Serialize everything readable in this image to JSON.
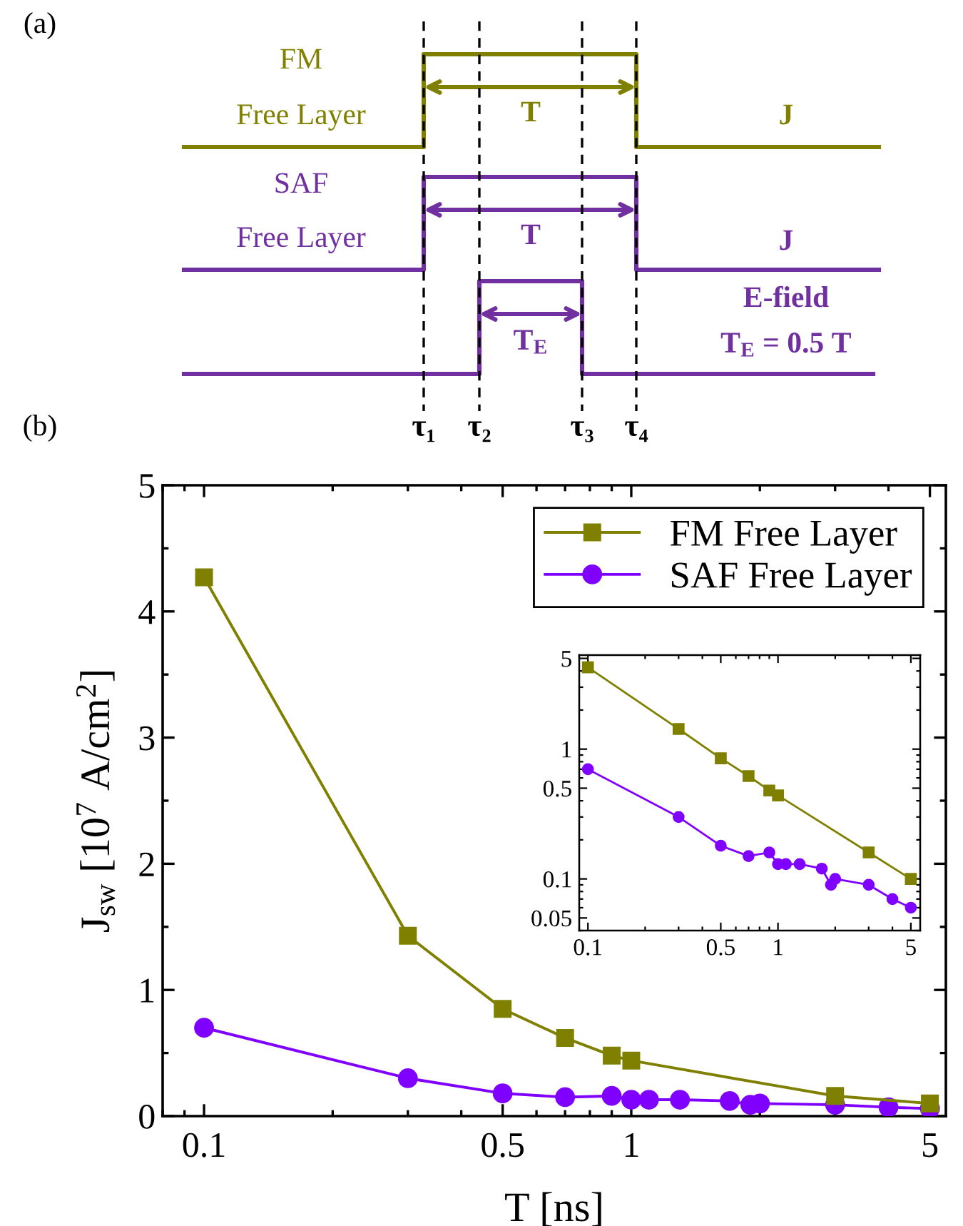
{
  "chart_data": [
    {
      "type": "other",
      "annotations": [
        "(a)",
        "FM",
        "Free Layer",
        "SAF",
        "Free Layer",
        "T",
        "T",
        "T$_{E}$",
        "J",
        "J",
        "E-field",
        "T$_{E}$ = 0.5 T",
        "τ₁",
        "τ₂",
        "τ₃",
        "τ₄"
      ]
    },
    {
      "type": "line",
      "annotations": [
        "(b)"
      ],
      "xlabel": "T [ns]",
      "ylabel": "J$_{sw}$ [10$^{7}$ A/cm$^{2}$]",
      "log": "x",
      "xlim": [
        0.08,
        5.45
      ],
      "xticks": [
        0.1,
        0.5,
        1,
        5
      ],
      "ylim": [
        0,
        5
      ],
      "yticks": [
        0,
        1,
        2,
        3,
        4,
        5
      ],
      "grid": false,
      "legend": "top right",
      "series": [
        {
          "name": "FM Free Layer",
          "color": "#808000",
          "marker": "square",
          "x": [
            0.1,
            0.3,
            0.5,
            0.7,
            0.9,
            1,
            3,
            5
          ],
          "values": [
            4.27,
            1.43,
            0.85,
            0.62,
            0.48,
            0.44,
            0.16,
            0.1
          ]
        },
        {
          "name": "SAF Free Layer",
          "color": "#8000ff",
          "marker": "circle",
          "x": [
            0.1,
            0.3,
            0.5,
            0.7,
            0.9,
            1,
            1.1,
            1.3,
            1.7,
            1.9,
            2,
            3,
            4,
            5
          ],
          "values": [
            0.7,
            0.3,
            0.18,
            0.15,
            0.16,
            0.13,
            0.13,
            0.13,
            0.12,
            0.09,
            0.1,
            0.09,
            0.07,
            0.06
          ]
        }
      ]
    },
    {
      "type": "line",
      "log": "xy",
      "xlim": [
        0.09,
        5.6
      ],
      "xticks": [
        0.1,
        0.5,
        1,
        5
      ],
      "ylim": [
        0.04,
        5.3
      ],
      "yticks": [
        0.05,
        0.1,
        0.5,
        1,
        5
      ],
      "grid": false,
      "series": [
        {
          "color": "#808000",
          "marker": "square",
          "x": [
            0.1,
            0.3,
            0.5,
            0.7,
            0.9,
            1,
            3,
            5
          ],
          "values": [
            4.27,
            1.43,
            0.85,
            0.62,
            0.48,
            0.44,
            0.16,
            0.1
          ]
        },
        {
          "color": "#8000ff",
          "marker": "circle",
          "x": [
            0.1,
            0.3,
            0.5,
            0.7,
            0.9,
            1,
            1.1,
            1.3,
            1.7,
            1.9,
            2,
            3,
            4,
            5
          ],
          "values": [
            0.7,
            0.3,
            0.18,
            0.15,
            0.16,
            0.13,
            0.13,
            0.13,
            0.12,
            0.09,
            0.1,
            0.09,
            0.07,
            0.06
          ]
        }
      ]
    }
  ]
}
